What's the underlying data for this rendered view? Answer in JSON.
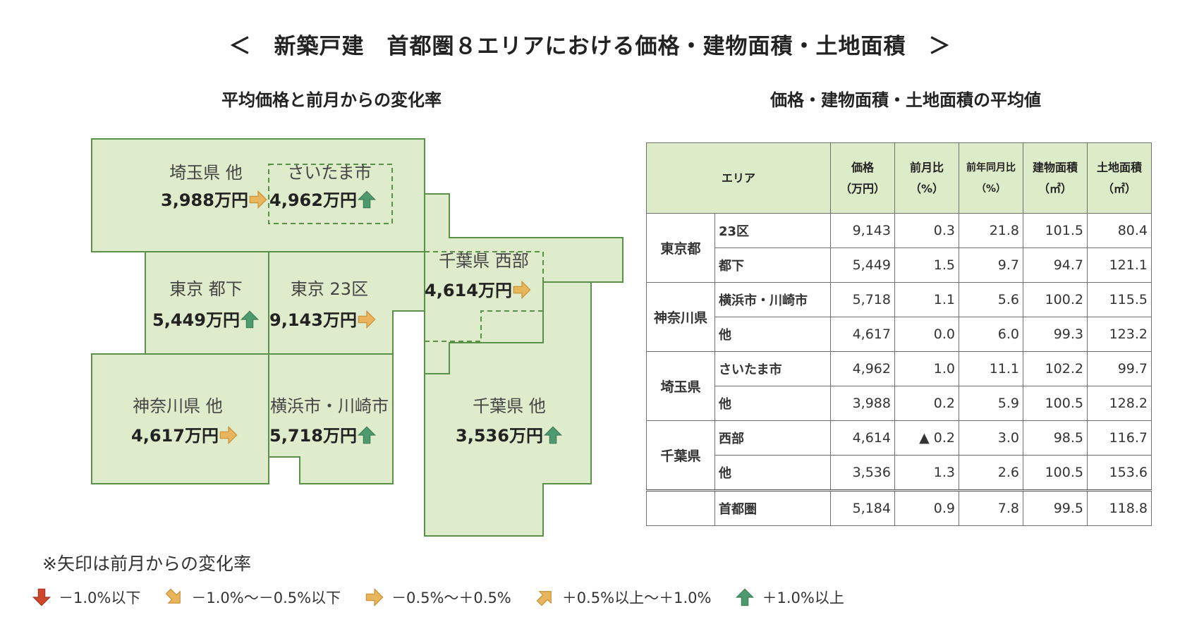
{
  "title": "＜　新築戸建　首都圏８エリアにおける価格・建物面積・土地面積　＞",
  "left_title": "平均価格と前月からの変化率",
  "right_title": "価格・建物面積・土地面積の平均値",
  "colors": {
    "map_fill": "#dfeccb",
    "map_stroke": "#5a9148",
    "header_fill": "#dcecc9",
    "up": "#4e9a6f",
    "flat": "#e8b55c",
    "down": "#d0462b"
  },
  "map_regions": [
    {
      "name": "埼玉県 他",
      "price": "3,988万円",
      "trend": "flat"
    },
    {
      "name": "さいたま市",
      "price": "4,962万円",
      "trend": "up"
    },
    {
      "name": "東京 都下",
      "price": "5,449万円",
      "trend": "up"
    },
    {
      "name": "東京 23区",
      "price": "9,143万円",
      "trend": "flat"
    },
    {
      "name": "千葉県 西部",
      "price": "4,614万円",
      "trend": "flat"
    },
    {
      "name": "神奈川県 他",
      "price": "4,617万円",
      "trend": "flat"
    },
    {
      "name": "横浜市・川崎市",
      "price": "5,718万円",
      "trend": "up"
    },
    {
      "name": "千葉県 他",
      "price": "3,536万円",
      "trend": "up"
    }
  ],
  "table": {
    "headers": {
      "area": "エリア",
      "price": [
        "価格",
        "（万円）"
      ],
      "mom": [
        "前月比",
        "（%）"
      ],
      "yoy": [
        "前年同月比",
        "（%）"
      ],
      "building": [
        "建物面積",
        "（㎡）"
      ],
      "land": [
        "土地面積",
        "（㎡）"
      ]
    },
    "prefs": [
      "東京都",
      "神奈川県",
      "埼玉県",
      "千葉県"
    ],
    "rows": [
      {
        "area": "23区",
        "price": "9,143",
        "mom": "0.3",
        "yoy": "21.8",
        "building": "101.5",
        "land": "80.4"
      },
      {
        "area": "都下",
        "price": "5,449",
        "mom": "1.5",
        "yoy": "9.7",
        "building": "94.7",
        "land": "121.1"
      },
      {
        "area": "横浜市・川崎市",
        "price": "5,718",
        "mom": "1.1",
        "yoy": "5.6",
        "building": "100.2",
        "land": "115.5"
      },
      {
        "area": "他",
        "price": "4,617",
        "mom": "0.0",
        "yoy": "6.0",
        "building": "99.3",
        "land": "123.2"
      },
      {
        "area": "さいたま市",
        "price": "4,962",
        "mom": "1.0",
        "yoy": "11.1",
        "building": "102.2",
        "land": "99.7"
      },
      {
        "area": "他",
        "price": "3,988",
        "mom": "0.2",
        "yoy": "5.9",
        "building": "100.5",
        "land": "128.2"
      },
      {
        "area": "西部",
        "price": "4,614",
        "mom": "▲ 0.2",
        "yoy": "3.0",
        "building": "98.5",
        "land": "116.7"
      },
      {
        "area": "他",
        "price": "3,536",
        "mom": "1.3",
        "yoy": "2.6",
        "building": "100.5",
        "land": "153.6"
      }
    ],
    "total": {
      "area": "首都圏",
      "price": "5,184",
      "mom": "0.9",
      "yoy": "7.8",
      "building": "99.5",
      "land": "118.8"
    }
  },
  "legend": {
    "note": "※矢印は前月からの変化率",
    "items": [
      {
        "icon": "arrow-down-icon",
        "label": "－1.0%以下"
      },
      {
        "icon": "arrow-down-right-icon",
        "label": "－1.0%～－0.5%以下"
      },
      {
        "icon": "arrow-right-icon",
        "label": "－0.5%～＋0.5%"
      },
      {
        "icon": "arrow-up-right-icon",
        "label": "＋0.5%以上～＋1.0%"
      },
      {
        "icon": "arrow-up-icon",
        "label": "＋1.0%以上"
      }
    ]
  },
  "chart_data": {
    "type": "table",
    "title": "価格・建物面積・土地面積の平均値",
    "columns": [
      "エリア",
      "価格（万円）",
      "前月比（%）",
      "前年同月比（%）",
      "建物面積（㎡）",
      "土地面積（㎡）"
    ],
    "rows": [
      [
        "東京都 23区",
        9143,
        0.3,
        21.8,
        101.5,
        80.4
      ],
      [
        "東京都 都下",
        5449,
        1.5,
        9.7,
        94.7,
        121.1
      ],
      [
        "神奈川県 横浜市・川崎市",
        5718,
        1.1,
        5.6,
        100.2,
        115.5
      ],
      [
        "神奈川県 他",
        4617,
        0.0,
        6.0,
        99.3,
        123.2
      ],
      [
        "埼玉県 さいたま市",
        4962,
        1.0,
        11.1,
        102.2,
        99.7
      ],
      [
        "埼玉県 他",
        3988,
        0.2,
        5.9,
        100.5,
        128.2
      ],
      [
        "千葉県 西部",
        4614,
        -0.2,
        3.0,
        98.5,
        116.7
      ],
      [
        "千葉県 他",
        3536,
        1.3,
        2.6,
        100.5,
        153.6
      ],
      [
        "首都圏",
        5184,
        0.9,
        7.8,
        99.5,
        118.8
      ]
    ]
  }
}
